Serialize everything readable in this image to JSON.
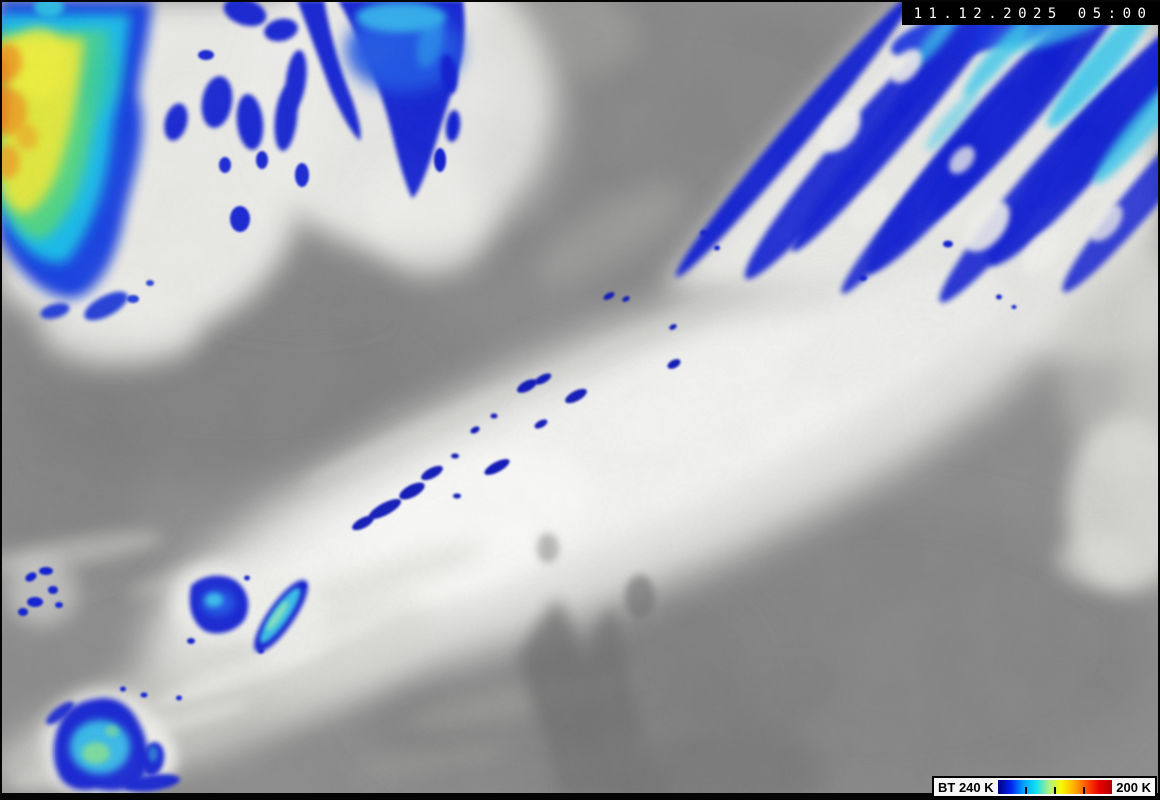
{
  "overlay": {
    "timestamp": "11.12.2025 05:00"
  },
  "legend": {
    "label_left": "BT 240 K",
    "label_right": "200 K",
    "gradient_stops": [
      "#000082",
      "#0020ee",
      "#00a0ff",
      "#10e0f0",
      "#a8f088",
      "#f8f800",
      "#ffb000",
      "#ff5000",
      "#e80000",
      "#b40000"
    ],
    "tick_positions_percent": [
      25,
      50,
      75
    ]
  },
  "scene": {
    "background_gray": "#8c8c8c",
    "cloud_white": "#efefec",
    "border_black": "#000000",
    "enhancement": {
      "deep_blue": "#0a1cd2",
      "bright_blue": "#1b54e6",
      "cyan": "#38c8ec",
      "green": "#84e290",
      "yellow": "#e9ea38",
      "orange": "#ef9d20"
    }
  }
}
